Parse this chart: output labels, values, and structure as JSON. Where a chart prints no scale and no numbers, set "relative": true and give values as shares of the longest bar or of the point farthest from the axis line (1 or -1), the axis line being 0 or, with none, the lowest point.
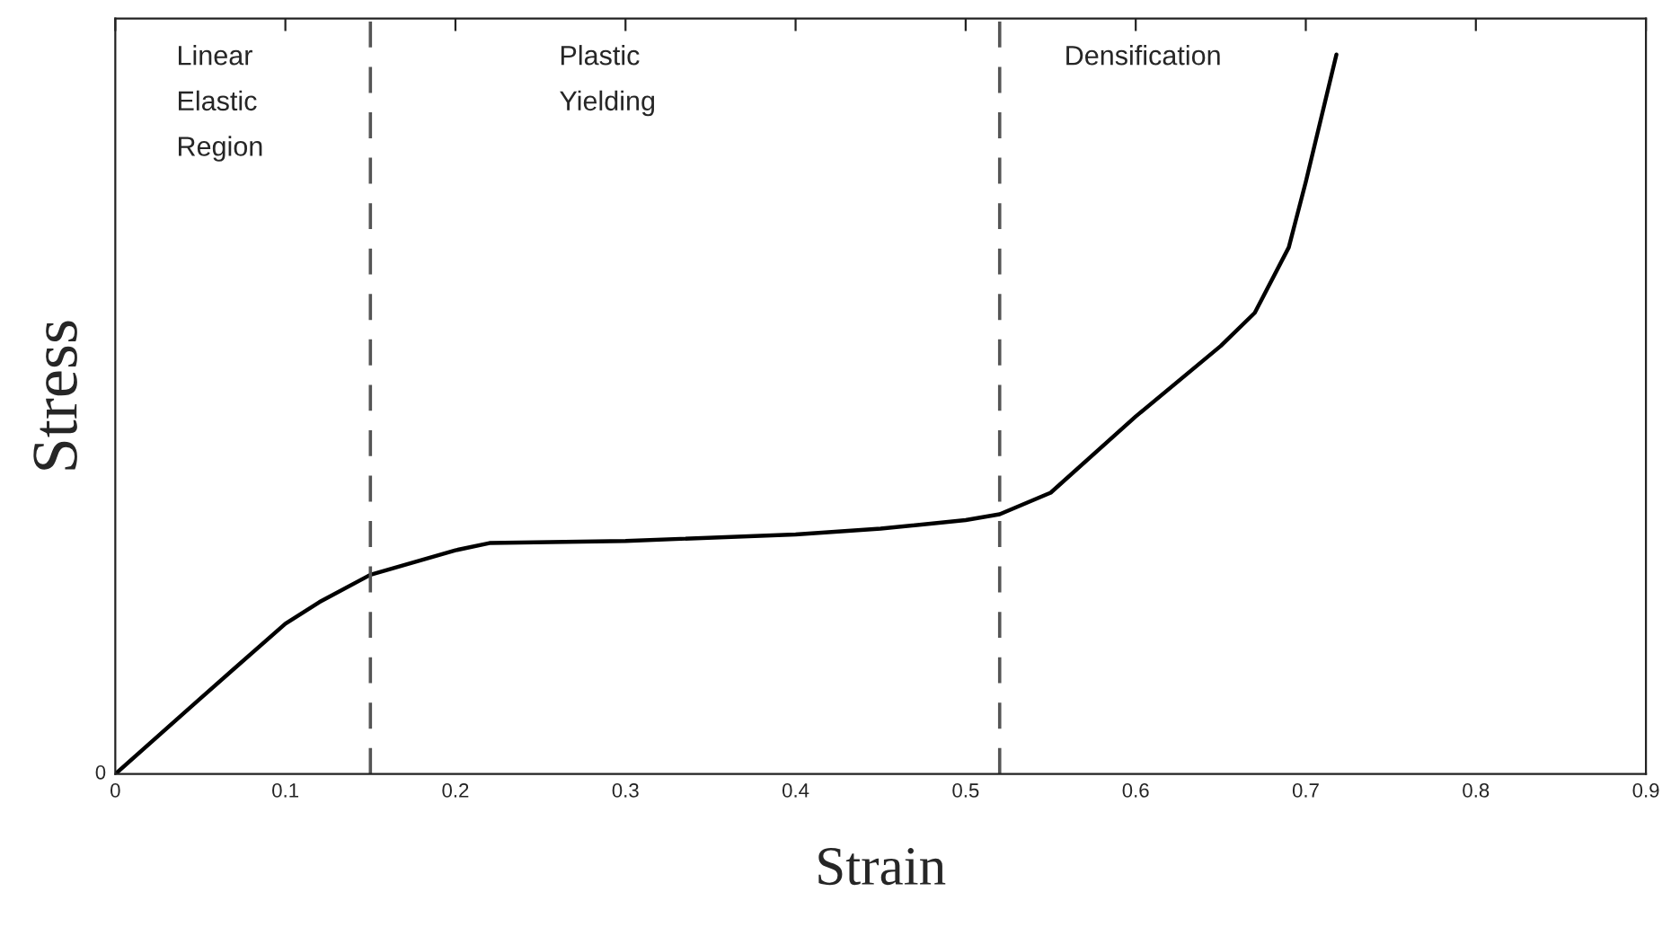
{
  "chart_data": {
    "type": "line",
    "xlabel": "Strain",
    "ylabel": "Stress",
    "relative": true,
    "x": [
      0,
      0.05,
      0.1,
      0.12,
      0.15,
      0.2,
      0.22,
      0.3,
      0.4,
      0.45,
      0.5,
      0.52,
      0.55,
      0.6,
      0.65,
      0.67,
      0.69,
      0.7,
      0.718
    ],
    "series": [
      {
        "color": "#000000",
        "values": [
          0,
          0.105,
          0.209,
          0.239,
          0.277,
          0.311,
          0.321,
          0.324,
          0.333,
          0.341,
          0.353,
          0.361,
          0.391,
          0.497,
          0.595,
          0.641,
          0.732,
          0.823,
          1.0
        ]
      }
    ],
    "xlim": [
      0,
      0.9
    ],
    "xticks": [
      0,
      0.1,
      0.2,
      0.3,
      0.4,
      0.5,
      0.6,
      0.7,
      0.8,
      0.9
    ],
    "ref_lines": [
      {
        "axis": "x",
        "value": 0.15,
        "color": "#555555",
        "line_style": "dashed"
      },
      {
        "axis": "x",
        "value": 0.52,
        "color": "#555555",
        "line_style": "dashed"
      }
    ],
    "annotations": [
      "0",
      "Linear\nElastic\nRegion",
      "Plastic\nYielding",
      "Densification"
    ],
    "grid": false,
    "legend": false
  }
}
